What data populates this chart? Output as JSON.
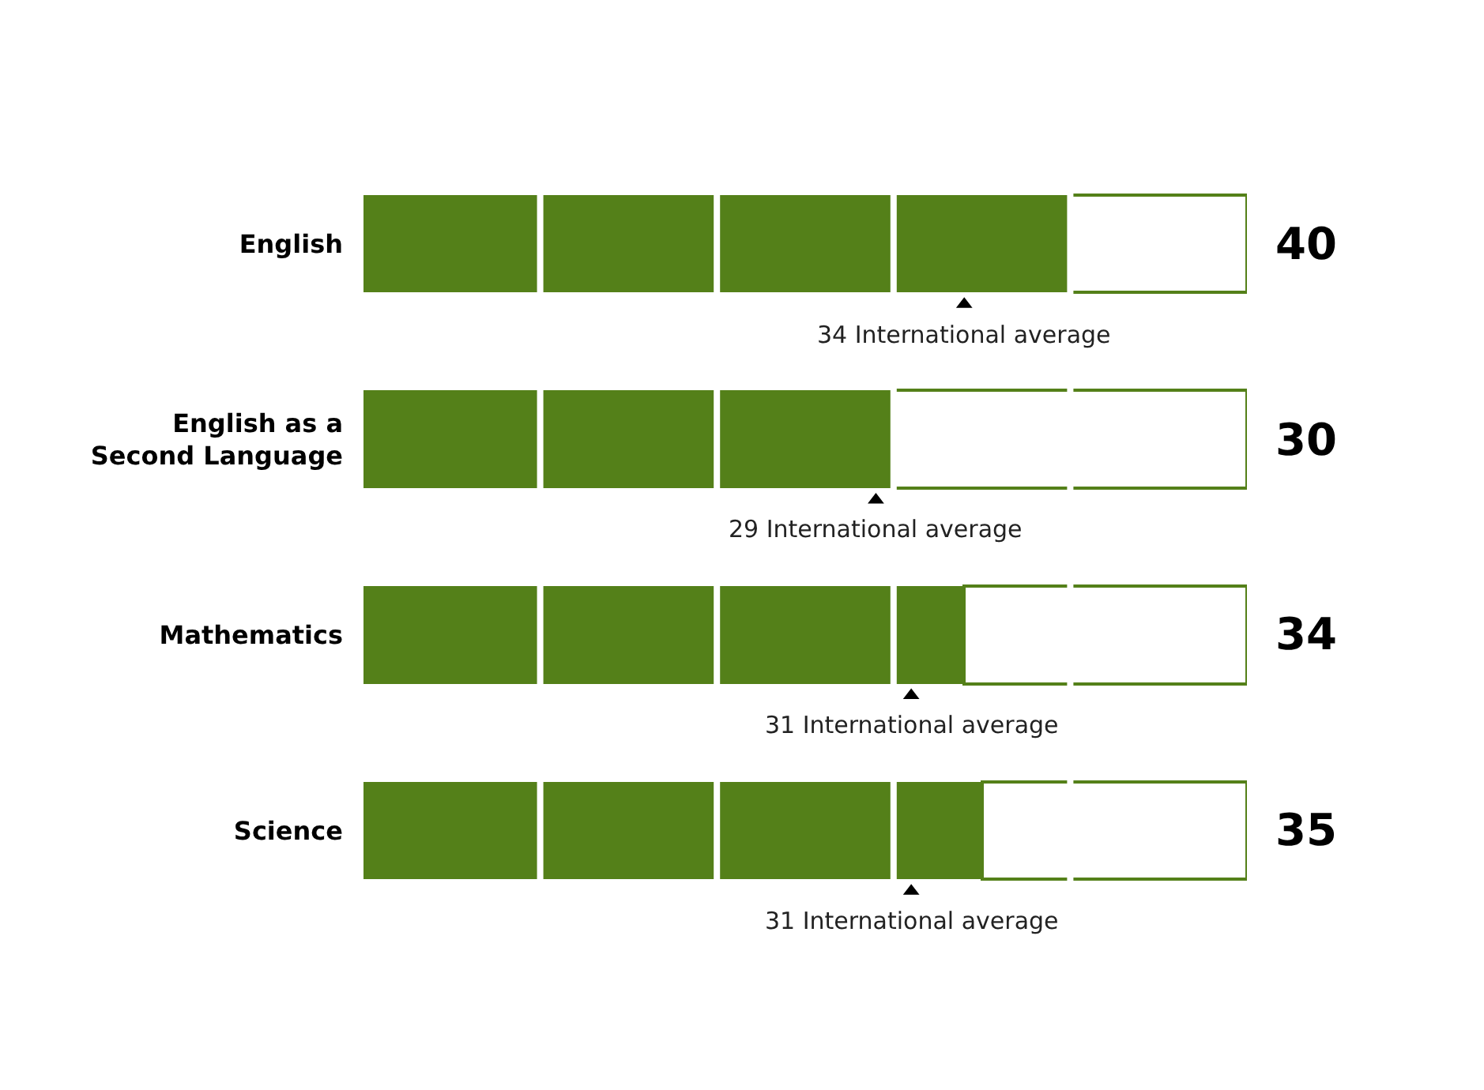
{
  "chart_data": {
    "type": "bar",
    "orientation": "horizontal",
    "categories": [
      "English",
      "English as a Second Language",
      "Mathematics",
      "Science"
    ],
    "series": [
      {
        "color": "#548019",
        "values": [
          40,
          30,
          34,
          35
        ],
        "value_labels": [
          "40",
          "30",
          "34",
          "35"
        ]
      },
      {
        "color": "#ffffff",
        "values": [
          10,
          20,
          16,
          15
        ]
      },
      {
        "type": "scatter",
        "color": "#000000",
        "marker": "triangle",
        "values": [
          34,
          29,
          31,
          31
        ],
        "value_labels": [
          "34 International average",
          "29 International average",
          "31 International average",
          "31 International average"
        ]
      }
    ],
    "stacked": true,
    "xlim": [
      0,
      50
    ],
    "tick_labels": "y",
    "ref_lines": [
      {
        "axis": "x",
        "value": 10,
        "color": "#ffffff"
      },
      {
        "axis": "x",
        "value": 20,
        "color": "#ffffff"
      },
      {
        "axis": "x",
        "value": 30,
        "color": "#ffffff"
      },
      {
        "axis": "x",
        "value": 40,
        "color": "#ffffff"
      }
    ]
  }
}
